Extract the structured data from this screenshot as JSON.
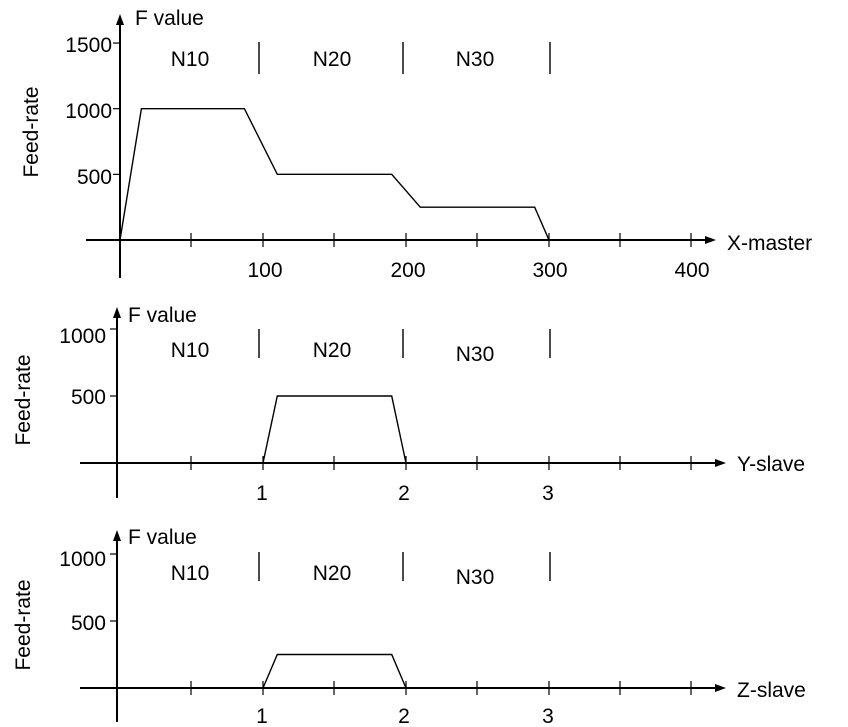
{
  "chart_data": [
    {
      "type": "line",
      "axis_name": "X-master",
      "ylabel": "Feed-rate",
      "y_axis_title": "F value",
      "x_tick_labels": [
        "100",
        "200",
        "300",
        "400"
      ],
      "y_tick_labels": [
        "1500",
        "1000",
        "500"
      ],
      "xlim": [
        0,
        400
      ],
      "ylim": [
        0,
        1500
      ],
      "blocks": [
        {
          "label": "N10",
          "start": 0,
          "end": 100
        },
        {
          "label": "N20",
          "start": 100,
          "end": 200
        },
        {
          "label": "N30",
          "start": 200,
          "end": 300
        }
      ],
      "series": [
        {
          "x": [
            0,
            15,
            87,
            110,
            190,
            210,
            290,
            300
          ],
          "y": [
            0,
            1000,
            1000,
            500,
            500,
            250,
            250,
            0
          ]
        }
      ]
    },
    {
      "type": "line",
      "axis_name": "Y-slave",
      "ylabel": "Feed-rate",
      "y_axis_title": "F value",
      "x_tick_labels": [
        "1",
        "2",
        "3"
      ],
      "y_tick_labels": [
        "1000",
        "500"
      ],
      "xlim": [
        0,
        4
      ],
      "ylim": [
        0,
        1000
      ],
      "blocks": [
        {
          "label": "N10",
          "start": 0,
          "end": 1
        },
        {
          "label": "N20",
          "start": 1,
          "end": 2
        },
        {
          "label": "N30",
          "start": 2,
          "end": 3
        }
      ],
      "series": [
        {
          "x": [
            1,
            1.1,
            1.9,
            2
          ],
          "y": [
            0,
            500,
            500,
            0
          ]
        }
      ]
    },
    {
      "type": "line",
      "axis_name": "Z-slave",
      "ylabel": "Feed-rate",
      "y_axis_title": "F value",
      "x_tick_labels": [
        "1",
        "2",
        "3"
      ],
      "y_tick_labels": [
        "1000",
        "500"
      ],
      "xlim": [
        0,
        4
      ],
      "ylim": [
        0,
        1000
      ],
      "blocks": [
        {
          "label": "N10",
          "start": 0,
          "end": 1
        },
        {
          "label": "N20",
          "start": 1,
          "end": 2
        },
        {
          "label": "N30",
          "start": 2,
          "end": 3
        }
      ],
      "series": [
        {
          "x": [
            1,
            1.1,
            1.9,
            2
          ],
          "y": [
            0,
            250,
            250,
            0
          ]
        }
      ]
    }
  ]
}
